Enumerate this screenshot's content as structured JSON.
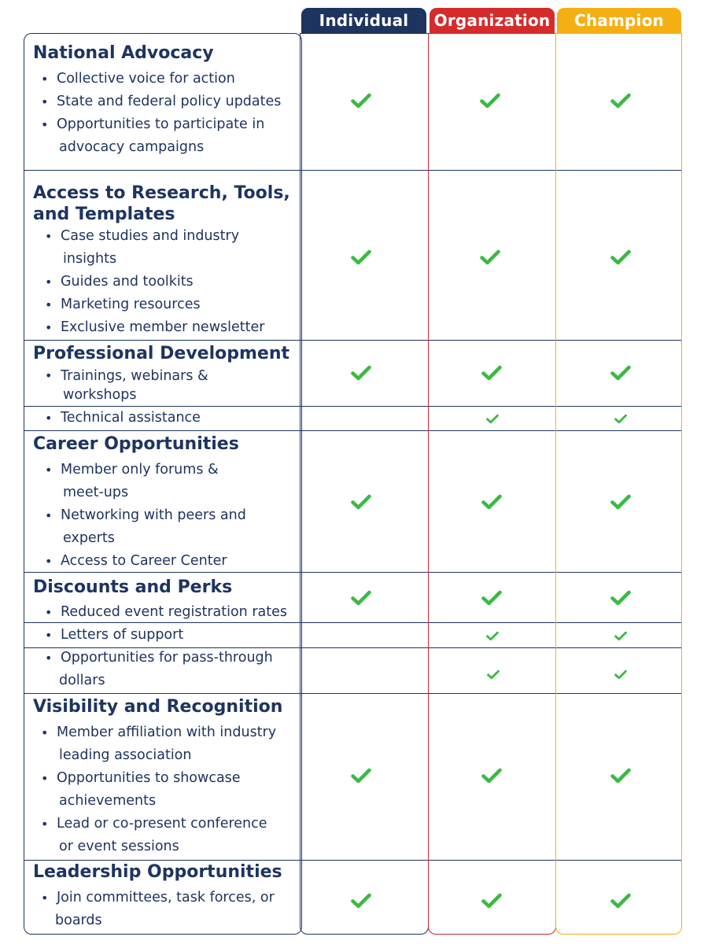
{
  "columns": {
    "individual": "Individual",
    "organization": "Organization",
    "champion": "Champion"
  },
  "colors": {
    "navy": "#1e3460",
    "red": "#d62b2b",
    "gold": "#f4b013",
    "check": "#3aba42"
  },
  "check_icon": "checkmark-icon",
  "sections": {
    "national_advocacy": {
      "title": "National Advocacy",
      "items": [
        "Collective voice for action",
        "State and federal policy updates",
        "Opportunities to participate in",
        "advocacy campaigns"
      ]
    },
    "research": {
      "title_line1": "Access to Research, Tools,",
      "title_line2": "and Templates",
      "items": [
        "Case studies and industry",
        "insights",
        "Guides and toolkits",
        "Marketing resources",
        "Exclusive member newsletter"
      ]
    },
    "professional_development": {
      "title": "Professional Development",
      "items": [
        "Trainings, webinars &",
        "workshops"
      ],
      "technical_assistance": "Technical assistance"
    },
    "career": {
      "title": "Career Opportunities",
      "items": [
        "Member only forums &",
        "meet-ups",
        "Networking with peers and",
        "experts",
        "Access to Career Center"
      ]
    },
    "discounts": {
      "title": "Discounts and Perks",
      "items": [
        "Reduced event registration rates"
      ],
      "letters_of_support": "Letters of support",
      "pass_through": [
        "Opportunities for pass-through",
        "dollars"
      ]
    },
    "visibility": {
      "title": "Visibility and Recognition",
      "items": [
        "Member affiliation with industry",
        "leading association",
        "Opportunities to showcase",
        "achievements",
        "Lead or co-present conference",
        "or event sessions"
      ]
    },
    "leadership": {
      "title": "Leadership Opportunities",
      "items": [
        "Join committees, task forces, or",
        "boards"
      ]
    }
  }
}
